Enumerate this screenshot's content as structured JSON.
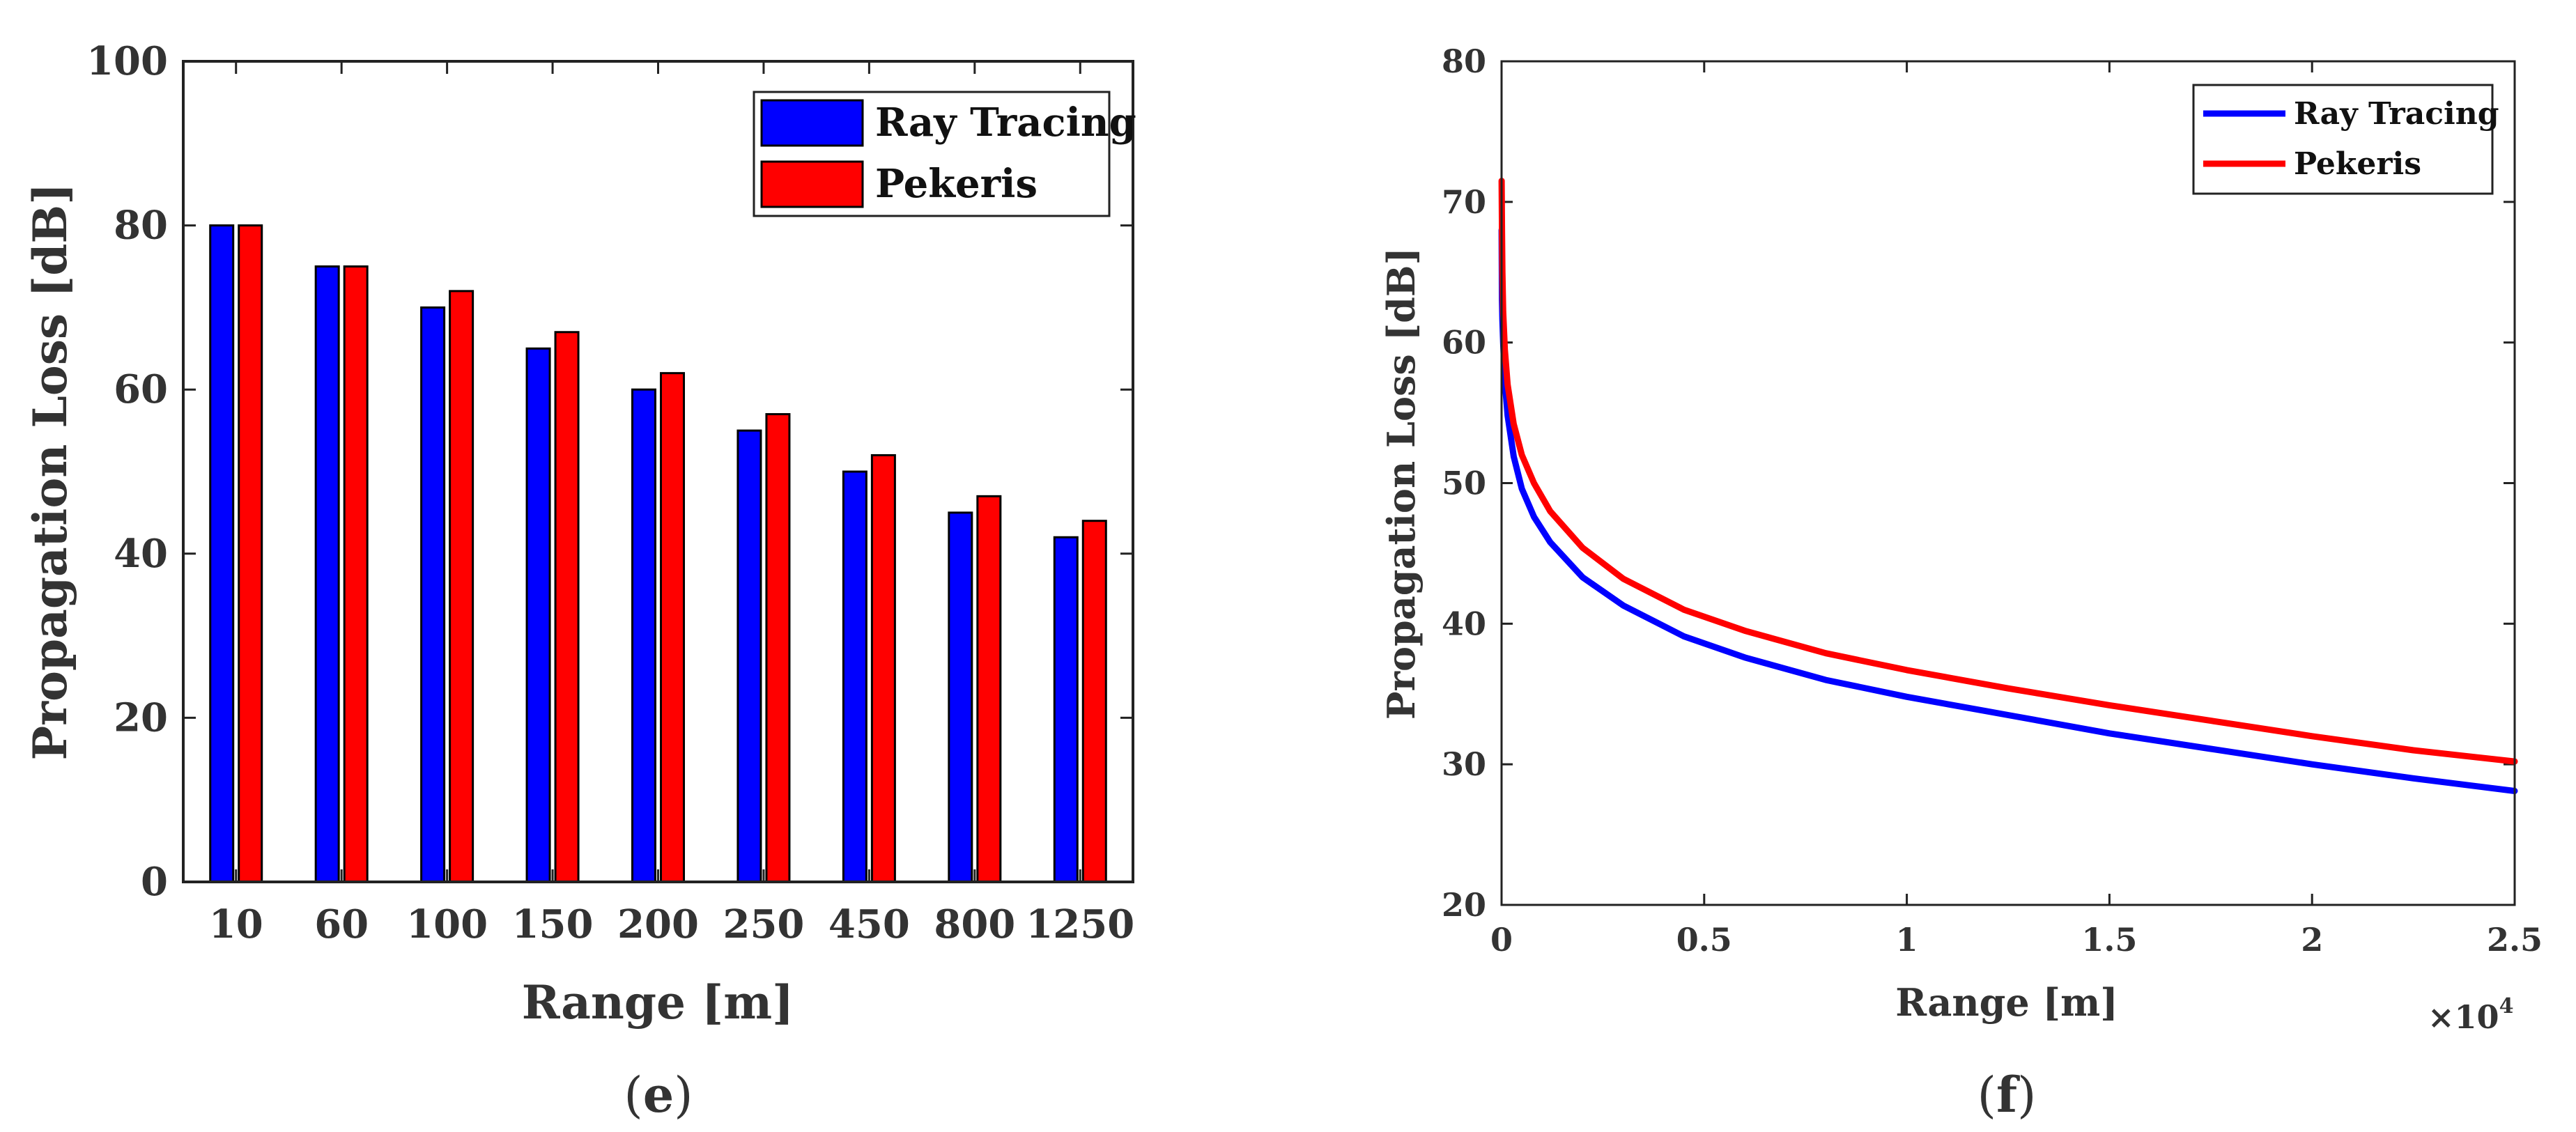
{
  "chart_data": [
    {
      "type": "bar",
      "panel_label": "e",
      "title": "",
      "xlabel": "Range [m]",
      "ylabel": "Propagation Loss [dB]",
      "ylim": [
        0,
        100
      ],
      "yticks": [
        "0",
        "20",
        "40",
        "60",
        "80",
        "100"
      ],
      "categories": [
        "10",
        "60",
        "100",
        "150",
        "200",
        "250",
        "450",
        "800",
        "1250"
      ],
      "legend_position": "top-right",
      "series": [
        {
          "name": "Ray Tracing",
          "color": "#0000ff",
          "values": [
            80,
            75,
            70,
            65,
            60,
            55,
            50,
            45,
            42
          ]
        },
        {
          "name": "Pekeris",
          "color": "#ff0000",
          "values": [
            80,
            75,
            72,
            67,
            62,
            57,
            52,
            47,
            44
          ]
        }
      ]
    },
    {
      "type": "line",
      "panel_label": "f",
      "title": "",
      "xlabel": "Range [m]",
      "ylabel": "Propagation Loss [dB]",
      "x_multiplier": "×10",
      "x_multiplier_exp": "4",
      "xlim": [
        0,
        2.5
      ],
      "ylim": [
        20,
        80
      ],
      "xticks": [
        "0",
        "0.5",
        "1",
        "1.5",
        "2",
        "2.5"
      ],
      "yticks": [
        "20",
        "30",
        "40",
        "50",
        "60",
        "70",
        "80"
      ],
      "legend_position": "top-right",
      "series": [
        {
          "name": "Ray Tracing",
          "color": "#0000ff",
          "x": [
            0.0001,
            0.001,
            0.002,
            0.004,
            0.008,
            0.015,
            0.03,
            0.05,
            0.08,
            0.12,
            0.2,
            0.3,
            0.45,
            0.6,
            0.8,
            1.0,
            1.25,
            1.5,
            1.75,
            2.0,
            2.25,
            2.5
          ],
          "y": [
            68.0,
            63.0,
            61.6,
            60.0,
            57.2,
            54.8,
            51.9,
            49.6,
            47.6,
            45.8,
            43.3,
            41.3,
            39.1,
            37.6,
            36.0,
            34.8,
            33.5,
            32.2,
            31.1,
            30.0,
            29.0,
            28.1
          ]
        },
        {
          "name": "Pekeris",
          "color": "#ff0000",
          "x": [
            0.0001,
            0.001,
            0.002,
            0.004,
            0.008,
            0.015,
            0.03,
            0.05,
            0.08,
            0.12,
            0.2,
            0.3,
            0.45,
            0.6,
            0.8,
            1.0,
            1.25,
            1.5,
            1.75,
            2.0,
            2.25,
            2.5
          ],
          "y": [
            71.5,
            68.0,
            65.0,
            62.2,
            59.5,
            57.0,
            54.2,
            52.0,
            50.0,
            48.0,
            45.4,
            43.2,
            41.0,
            39.5,
            37.9,
            36.7,
            35.4,
            34.2,
            33.1,
            32.0,
            31.0,
            30.2
          ]
        }
      ]
    }
  ]
}
